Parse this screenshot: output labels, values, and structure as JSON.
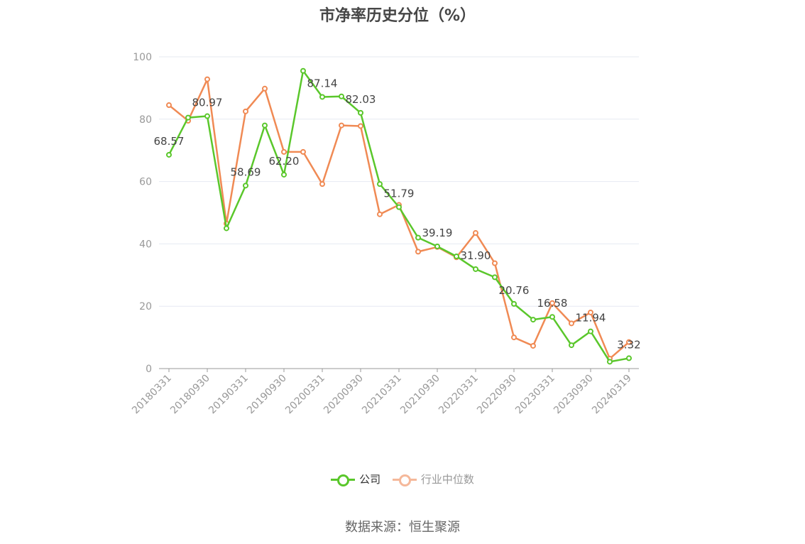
{
  "title": "市净率历史分位（%）",
  "legend": {
    "company": "公司",
    "industry": "行业中位数"
  },
  "source": "数据来源：恒生聚源",
  "colors": {
    "company": "#5ac72b",
    "industry": "#f08a54",
    "industry_legend": "#f5b89a",
    "grid": "#e6e9f2",
    "axis": "#999999"
  },
  "chart_data": {
    "type": "line",
    "title": "市净率历史分位（%）",
    "ylim": [
      0,
      100
    ],
    "y_ticks": [
      0,
      20,
      40,
      60,
      80,
      100
    ],
    "grid": true,
    "legend_position": "bottom-center",
    "x": [
      "20180331",
      "20180630",
      "20180930",
      "20181231",
      "20190331",
      "20190630",
      "20190930",
      "20191231",
      "20200331",
      "20200630",
      "20200930",
      "20201231",
      "20210331",
      "20210630",
      "20210930",
      "20211231",
      "20220331",
      "20220630",
      "20220930",
      "20221231",
      "20230331",
      "20230630",
      "20230930",
      "20231231",
      "20240319"
    ],
    "x_tick_labels": [
      "20180331",
      "20180930",
      "20190331",
      "20190930",
      "20200331",
      "20200930",
      "20210331",
      "20210930",
      "20220331",
      "20220930",
      "20230331",
      "20230930",
      "20240319"
    ],
    "series": [
      {
        "name": "公司",
        "values": [
          68.57,
          80.5,
          80.97,
          45.0,
          58.69,
          78.0,
          62.2,
          95.5,
          87.14,
          87.3,
          82.03,
          59.2,
          51.79,
          42.0,
          39.19,
          36.0,
          31.9,
          29.3,
          20.76,
          15.7,
          16.58,
          7.5,
          11.94,
          2.2,
          3.32
        ],
        "labels": {
          "0": "68.57",
          "2": "80.97",
          "4": "58.69",
          "6": "62.20",
          "8": "87.14",
          "10": "82.03",
          "12": "51.79",
          "14": "39.19",
          "16": "31.90",
          "18": "20.76",
          "20": "16.58",
          "22": "11.94",
          "24": "3.32"
        }
      },
      {
        "name": "行业中位数",
        "values": [
          84.5,
          79.5,
          92.8,
          46.5,
          82.5,
          89.8,
          69.5,
          69.5,
          59.2,
          78.0,
          77.8,
          49.5,
          52.5,
          37.5,
          39.0,
          35.7,
          43.5,
          33.8,
          10.0,
          7.3,
          21.0,
          14.5,
          18.0,
          3.2,
          8.5
        ]
      }
    ]
  }
}
